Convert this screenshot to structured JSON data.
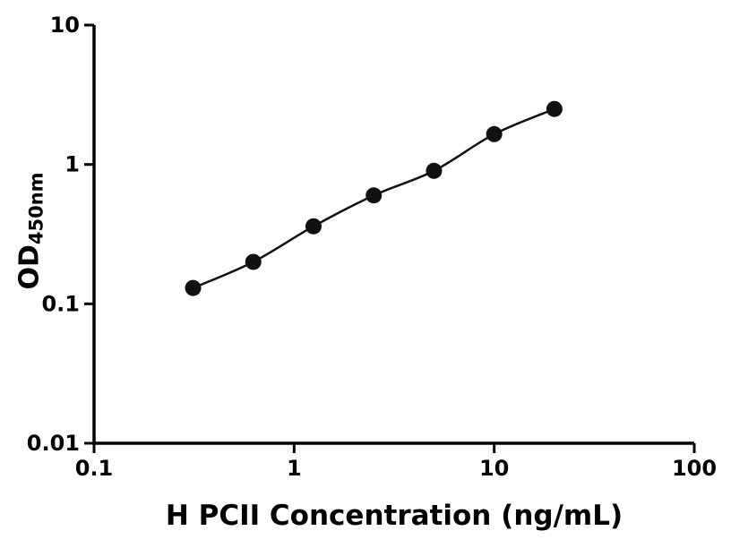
{
  "figure": {
    "background": "#ffffff"
  },
  "chart_data": {
    "type": "scatter",
    "title": "",
    "xlabel": "H PCII Concentration (ng/mL)",
    "ylabel": "OD",
    "ylabel_subscript": "450nm",
    "x": [
      0.3125,
      0.625,
      1.25,
      2.5,
      5,
      10,
      20
    ],
    "y": [
      0.13,
      0.2,
      0.36,
      0.6,
      0.9,
      1.65,
      2.5
    ],
    "x_scale": "log",
    "y_scale": "log",
    "xlim": [
      0.1,
      100
    ],
    "ylim": [
      0.01,
      10
    ],
    "x_ticks": [
      {
        "value": 0.1,
        "label": "0.1"
      },
      {
        "value": 1,
        "label": "1"
      },
      {
        "value": 10,
        "label": "10"
      },
      {
        "value": 100,
        "label": "100"
      }
    ],
    "y_ticks": [
      {
        "value": 0.01,
        "label": "0.01"
      },
      {
        "value": 0.1,
        "label": "0.1"
      },
      {
        "value": 1,
        "label": "1"
      },
      {
        "value": 10,
        "label": "10"
      }
    ],
    "marker_color": "#111111",
    "line_color": "#111111",
    "axis_color": "#000000",
    "grid": false,
    "legend": false
  }
}
